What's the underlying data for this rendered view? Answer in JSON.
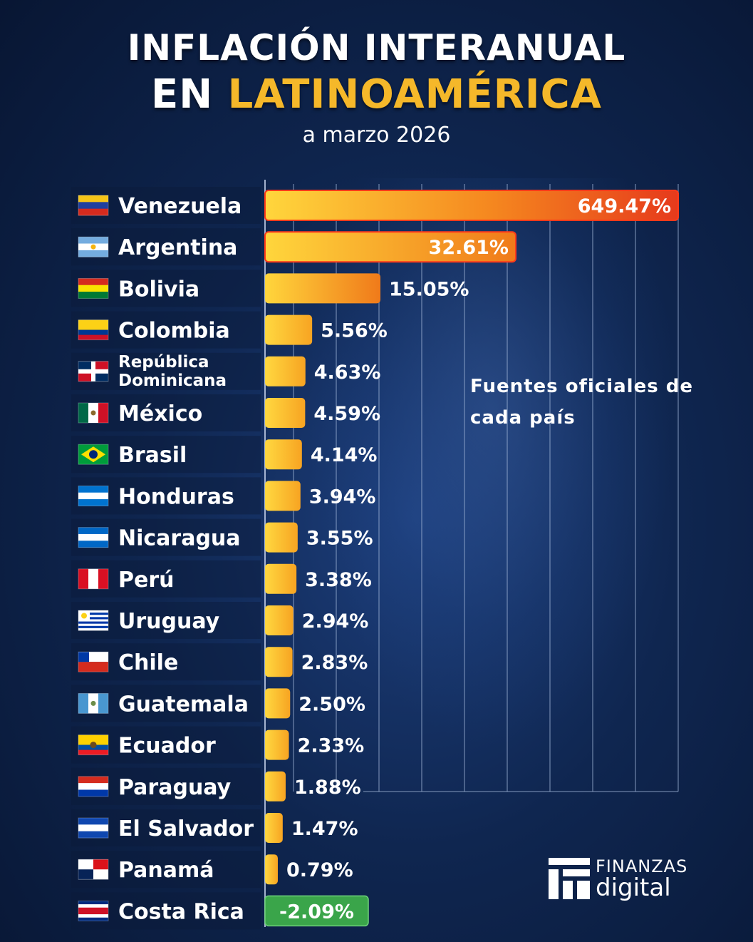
{
  "title": {
    "line1": "INFLACIÓN INTERANUAL",
    "line2_prefix": "EN ",
    "line2_accent": "LATINOAMÉRICA",
    "subtitle": "a marzo 2026"
  },
  "note": "Fuentes oficiales de cada país",
  "logo": {
    "line1": "FINANZAS",
    "line2": "digital"
  },
  "colors": {
    "title_accent": "#f5b82a",
    "bar_low": "#ffd23a",
    "bar_high": "#e63a1c",
    "negative_bar": "#3aa54a",
    "background": "#0f2650"
  },
  "chart_data": {
    "type": "bar",
    "orientation": "horizontal",
    "title": "INFLACIÓN INTERANUAL EN LATINOAMÉRICA",
    "subtitle": "a marzo 2026",
    "xlabel": "",
    "ylabel": "",
    "grid": true,
    "categories": [
      "Venezuela",
      "Argentina",
      "Bolivia",
      "Colombia",
      "República Dominicana",
      "México",
      "Brasil",
      "Honduras",
      "Nicaragua",
      "Perú",
      "Uruguay",
      "Chile",
      "Guatemala",
      "Ecuador",
      "Paraguay",
      "El Salvador",
      "Panamá",
      "Costa Rica"
    ],
    "values": [
      649.47,
      32.61,
      15.05,
      5.56,
      4.63,
      4.59,
      4.14,
      3.94,
      3.55,
      3.38,
      2.94,
      2.83,
      2.5,
      2.33,
      1.88,
      1.47,
      0.79,
      -2.09
    ],
    "value_labels": [
      "649.47%",
      "32.61%",
      "15.05%",
      "5.56%",
      "4.63%",
      "4.59%",
      "4.14%",
      "3.94%",
      "3.55%",
      "3.38%",
      "2.94%",
      "2.83%",
      "2.50%",
      "2.33%",
      "1.88%",
      "1.47%",
      "0.79%",
      "-2.09%"
    ]
  }
}
